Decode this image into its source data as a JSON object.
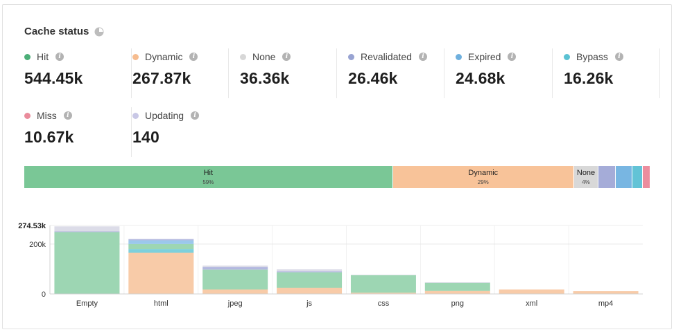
{
  "card": {
    "title": "Cache status"
  },
  "stats": [
    {
      "label": "Hit",
      "value": "544.45k",
      "color": "#4caf78"
    },
    {
      "label": "Dynamic",
      "value": "267.87k",
      "color": "#f6bc8f"
    },
    {
      "label": "None",
      "value": "36.36k",
      "color": "#d7d7d7"
    },
    {
      "label": "Revalidated",
      "value": "26.46k",
      "color": "#98a3d2"
    },
    {
      "label": "Expired",
      "value": "24.68k",
      "color": "#6fb0de"
    },
    {
      "label": "Bypass",
      "value": "16.26k",
      "color": "#5bc2d3"
    },
    {
      "label": "Miss",
      "value": "10.67k",
      "color": "#ea8c9c"
    },
    {
      "label": "Updating",
      "value": "140",
      "color": "#c9c8e6"
    }
  ],
  "distribution": [
    {
      "name": "Hit",
      "pct": "59%",
      "share": 59,
      "color": "#7ac796"
    },
    {
      "name": "Dynamic",
      "pct": "29%",
      "share": 29,
      "color": "#f8c399"
    },
    {
      "name": "None",
      "pct": "4%",
      "share": 3.9,
      "color": "#d8d8d8"
    },
    {
      "name": "",
      "pct": "",
      "share": 2.8,
      "color": "#a5acd8"
    },
    {
      "name": "",
      "pct": "",
      "share": 2.6,
      "color": "#78b6e2"
    },
    {
      "name": "",
      "pct": "",
      "share": 1.7,
      "color": "#62c3d6"
    },
    {
      "name": "",
      "pct": "",
      "share": 1.1,
      "color": "#ec8d9e"
    }
  ],
  "chart_data": {
    "type": "bar",
    "stacked": true,
    "categories": [
      "Empty",
      "html",
      "jpeg",
      "js",
      "css",
      "png",
      "xml",
      "mp4"
    ],
    "ymax_label": "274.53k",
    "yticks": [
      {
        "value": 200000,
        "label": "200k"
      },
      {
        "value": 0,
        "label": "0"
      }
    ],
    "ylim": [
      0,
      274530
    ],
    "series": [
      {
        "name": "Dynamic",
        "color": "#f8cba8",
        "values": [
          0,
          165000,
          18000,
          25000,
          5000,
          12000,
          18000,
          11000
        ]
      },
      {
        "name": "Bypass",
        "color": "#7dd0dc",
        "values": [
          0,
          15000,
          0,
          0,
          0,
          0,
          0,
          0
        ]
      },
      {
        "name": "Hit",
        "color": "#9dd6b3",
        "values": [
          248000,
          20000,
          80000,
          62000,
          70000,
          33000,
          0,
          0
        ]
      },
      {
        "name": "Expired",
        "color": "#9bc8ec",
        "values": [
          0,
          15000,
          0,
          0,
          0,
          0,
          0,
          0
        ]
      },
      {
        "name": "Revalidated",
        "color": "#b3b8df",
        "values": [
          3000,
          5000,
          10000,
          4000,
          0,
          0,
          0,
          0
        ]
      },
      {
        "name": "None",
        "color": "#dcdce8",
        "values": [
          20000,
          0,
          6000,
          8000,
          2000,
          2000,
          0,
          0
        ]
      }
    ]
  }
}
